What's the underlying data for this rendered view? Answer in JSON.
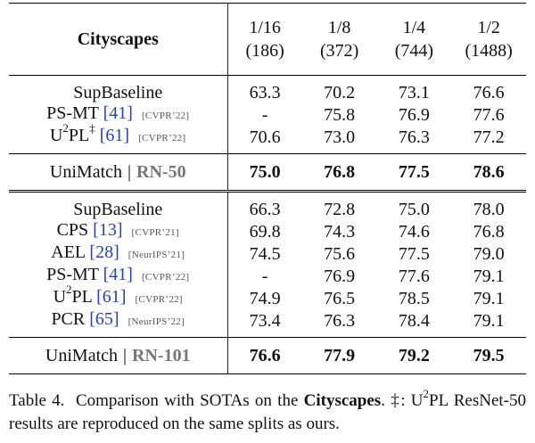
{
  "table": {
    "title": "Cityscapes",
    "columns": [
      {
        "frac": "1/16",
        "count": "(186)"
      },
      {
        "frac": "1/8",
        "count": "(372)"
      },
      {
        "frac": "1/4",
        "count": "(744)"
      },
      {
        "frac": "1/2",
        "count": "(1488)"
      }
    ],
    "rn50": {
      "rows": [
        {
          "name": "SupBaseline",
          "ref": "",
          "venue": "",
          "values": [
            "63.3",
            "70.2",
            "73.1",
            "76.6"
          ]
        },
        {
          "name": "PS-MT",
          "ref": "[41]",
          "venue": "[CVPR’22]",
          "values": [
            "-",
            "75.8",
            "76.9",
            "77.6"
          ]
        },
        {
          "name_pre": "U",
          "name_sup1": "2",
          "name_mid": "PL",
          "name_sup2": "‡",
          "ref": "[61]",
          "venue": "[CVPR’22]",
          "values": [
            "70.6",
            "73.0",
            "76.3",
            "77.2"
          ]
        }
      ],
      "ours": {
        "name": "UniMatch",
        "bar": "|",
        "backbone": "RN-50",
        "values": [
          "75.0",
          "76.8",
          "77.5",
          "78.6"
        ]
      }
    },
    "rn101": {
      "rows": [
        {
          "name": "SupBaseline",
          "ref": "",
          "venue": "",
          "values": [
            "66.3",
            "72.8",
            "75.0",
            "78.0"
          ]
        },
        {
          "name": "CPS",
          "ref": "[13]",
          "venue": "[CVPR’21]",
          "values": [
            "69.8",
            "74.3",
            "74.6",
            "76.8"
          ]
        },
        {
          "name": "AEL",
          "ref": "[28]",
          "venue": "[NeurIPS’21]",
          "values": [
            "74.5",
            "75.6",
            "77.5",
            "79.0"
          ]
        },
        {
          "name": "PS-MT",
          "ref": "[41]",
          "venue": "[CVPR’22]",
          "values": [
            "-",
            "76.9",
            "77.6",
            "79.1"
          ]
        },
        {
          "name_pre": "U",
          "name_sup1": "2",
          "name_mid": "PL",
          "ref": "[61]",
          "venue": "[CVPR’22]",
          "values": [
            "74.9",
            "76.5",
            "78.5",
            "79.1"
          ]
        },
        {
          "name": "PCR",
          "ref": "[65]",
          "venue": "[NeurIPS’22]",
          "values": [
            "73.4",
            "76.3",
            "78.4",
            "79.1"
          ]
        }
      ],
      "ours": {
        "name": "UniMatch",
        "bar": "|",
        "backbone": "RN-101",
        "values": [
          "76.6",
          "77.9",
          "79.2",
          "79.5"
        ]
      }
    }
  },
  "caption": {
    "label": "Table 4.",
    "text1": "Comparison with SOTAs on the",
    "bold": "Cityscapes",
    "text2": ". ‡:",
    "u": "U",
    "sup": "2",
    "pl": "PL",
    "text3": "ResNet-50 results are reproduced on the same splits as ours."
  }
}
